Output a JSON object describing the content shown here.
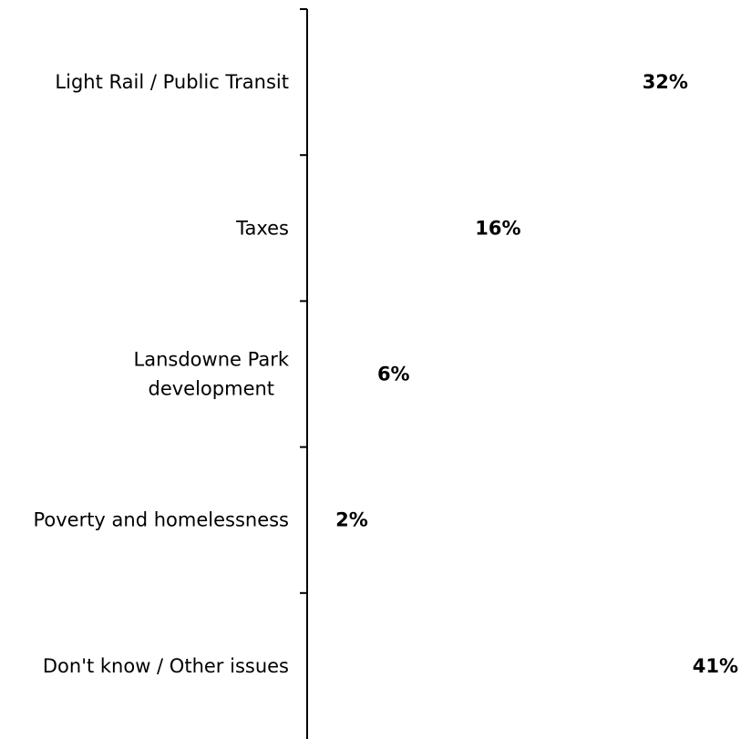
{
  "chart_data": {
    "type": "bar",
    "orientation": "horizontal",
    "title": "",
    "xlabel": "",
    "ylabel": "",
    "categories": [
      [
        "Light Rail / Public Transit"
      ],
      [
        "Taxes"
      ],
      [
        "Lansdowne Park",
        "development"
      ],
      [
        "Poverty and homelessness"
      ],
      [
        "Don't know / Other issues"
      ]
    ],
    "values": [
      32,
      16,
      6,
      2,
      41
    ],
    "value_labels": [
      "32%",
      "16%",
      "6%",
      "2%",
      "41%"
    ],
    "unit": "%",
    "xlim": [
      0,
      41
    ],
    "bars_visible": false,
    "grid": false,
    "legend": "none",
    "colors": {
      "axis": "#000000",
      "text": "#000000",
      "background": "#ffffff"
    }
  }
}
